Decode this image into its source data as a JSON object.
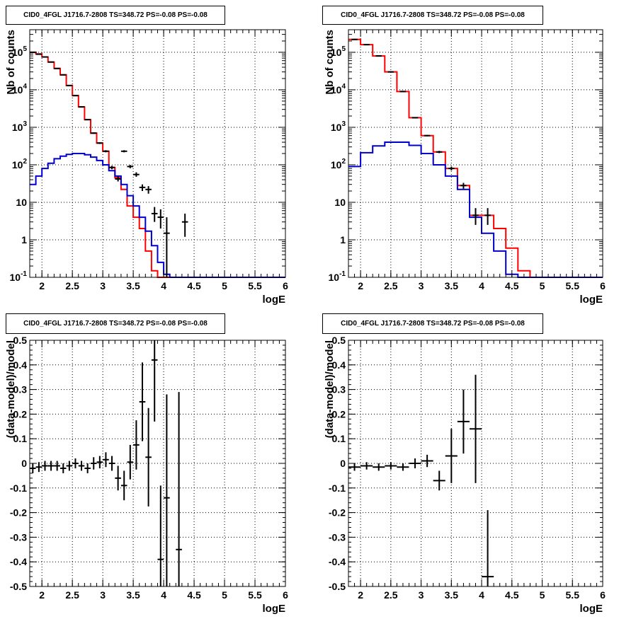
{
  "colors": {
    "data": "#000000",
    "model": "#ff0000",
    "background_model": "#0000cc",
    "grid": "#000000"
  },
  "chart_data": [
    {
      "type": "line",
      "title": "CID0_4FGL J1716.7-2808 TS=348.72 PS=-0.08 PS=-0.08",
      "xlabel": "logE",
      "ylabel": "Nb of counts",
      "xlim": [
        1.8,
        6.0
      ],
      "ylim": [
        0.1,
        400000
      ],
      "yscale": "log",
      "grid": true,
      "xticks": [
        "2",
        "2.5",
        "3",
        "3.5",
        "4",
        "4.5",
        "5",
        "5.5",
        "6"
      ],
      "yticks": [
        "10^-1",
        "1",
        "10",
        "10^2",
        "10^3",
        "10^4",
        "10^5"
      ],
      "bin_edges": [
        1.8,
        1.9,
        2.0,
        2.1,
        2.2,
        2.3,
        2.4,
        2.5,
        2.6,
        2.7,
        2.8,
        2.9,
        3.0,
        3.1,
        3.2,
        3.3,
        3.4,
        3.5,
        3.6,
        3.7,
        3.8,
        3.9,
        4.0,
        4.1,
        4.2,
        4.3,
        4.4,
        4.5,
        4.6,
        4.7,
        4.8,
        4.9,
        5.0,
        5.1,
        5.2,
        5.3,
        5.4,
        5.5,
        5.6,
        5.7,
        5.8,
        5.9,
        6.0
      ],
      "series": [
        {
          "role": "model",
          "values": [
            100000,
            90000,
            75000,
            55000,
            37000,
            25000,
            13000,
            7000,
            3500,
            1600,
            700,
            380,
            230,
            85,
            45,
            22,
            8,
            4,
            2,
            0.5,
            0.15,
            0.1,
            0.1,
            0.1,
            0.1,
            0.1,
            0.1,
            0.1,
            0.1,
            0.1,
            0.1,
            0.1,
            0.1,
            0.1,
            0.1,
            0.1,
            0.1,
            0.1,
            0.1,
            0.1,
            0.1,
            0.1
          ]
        },
        {
          "role": "background_model",
          "values": [
            30,
            50,
            80,
            110,
            145,
            170,
            190,
            200,
            200,
            185,
            160,
            130,
            100,
            70,
            50,
            30,
            15,
            8,
            4,
            1.7,
            0.7,
            0.25,
            0.12,
            0.1,
            0.1,
            0.1,
            0.1,
            0.1,
            0.1,
            0.1,
            0.1,
            0.1,
            0.1,
            0.1,
            0.1,
            0.1,
            0.1,
            0.1,
            0.1,
            0.1,
            0.1,
            0.1
          ]
        }
      ],
      "points": [
        {
          "x": 1.85,
          "y": 100000,
          "ylo": 99000,
          "yhi": 101000
        },
        {
          "x": 1.95,
          "y": 89000,
          "ylo": 88000,
          "yhi": 90000
        },
        {
          "x": 2.05,
          "y": 75000,
          "ylo": 74000,
          "yhi": 76000
        },
        {
          "x": 2.15,
          "y": 55000,
          "ylo": 54000,
          "yhi": 56000
        },
        {
          "x": 2.25,
          "y": 37000,
          "ylo": 36500,
          "yhi": 37500
        },
        {
          "x": 2.35,
          "y": 25000,
          "ylo": 24500,
          "yhi": 25500
        },
        {
          "x": 2.45,
          "y": 13000,
          "ylo": 12800,
          "yhi": 13200
        },
        {
          "x": 2.55,
          "y": 7000,
          "ylo": 6900,
          "yhi": 7100
        },
        {
          "x": 2.65,
          "y": 3500,
          "ylo": 3400,
          "yhi": 3600
        },
        {
          "x": 2.75,
          "y": 1600,
          "ylo": 1550,
          "yhi": 1650
        },
        {
          "x": 2.85,
          "y": 700,
          "ylo": 670,
          "yhi": 730
        },
        {
          "x": 2.95,
          "y": 380,
          "ylo": 360,
          "yhi": 400
        },
        {
          "x": 3.05,
          "y": 230,
          "ylo": 215,
          "yhi": 245
        },
        {
          "x": 3.15,
          "y": 85,
          "ylo": 76,
          "yhi": 94
        },
        {
          "x": 3.25,
          "y": 42,
          "ylo": 36,
          "yhi": 49
        },
        {
          "x": 3.35,
          "y": 230,
          "ylo": 215,
          "yhi": 245
        },
        {
          "x": 3.45,
          "y": 90,
          "ylo": 81,
          "yhi": 99
        },
        {
          "x": 3.55,
          "y": 55,
          "ylo": 48,
          "yhi": 63
        },
        {
          "x": 3.65,
          "y": 25,
          "ylo": 20,
          "yhi": 30
        },
        {
          "x": 3.75,
          "y": 22,
          "ylo": 17,
          "yhi": 27
        },
        {
          "x": 3.85,
          "y": 5,
          "ylo": 3,
          "yhi": 7.5
        },
        {
          "x": 3.95,
          "y": 4,
          "ylo": 2,
          "yhi": 6.5
        },
        {
          "x": 4.05,
          "y": 1.5,
          "ylo": 0.1,
          "yhi": 4
        },
        {
          "x": 4.35,
          "y": 3,
          "ylo": 1.2,
          "yhi": 5
        }
      ]
    },
    {
      "type": "line",
      "title": "CID0_4FGL J1716.7-2808 TS=348.72 PS=-0.08 PS=-0.08",
      "xlabel": "logE",
      "ylabel": "Nb of counts",
      "xlim": [
        1.8,
        6.0
      ],
      "ylim": [
        0.1,
        400000
      ],
      "yscale": "log",
      "grid": true,
      "xticks": [
        "2",
        "2.5",
        "3",
        "3.5",
        "4",
        "4.5",
        "5",
        "5.5",
        "6"
      ],
      "yticks": [
        "10^-1",
        "1",
        "10",
        "10^2",
        "10^3",
        "10^4",
        "10^5"
      ],
      "bin_edges": [
        1.8,
        2.0,
        2.2,
        2.4,
        2.6,
        2.8,
        3.0,
        3.2,
        3.4,
        3.6,
        3.8,
        4.0,
        4.2,
        4.4,
        4.6,
        4.8,
        5.0,
        5.2,
        5.4,
        5.6,
        5.8,
        6.0
      ],
      "series": [
        {
          "role": "model",
          "values": [
            220000,
            160000,
            80000,
            30000,
            9000,
            1800,
            600,
            220,
            80,
            28,
            4.5,
            4.5,
            2,
            0.6,
            0.15,
            0.1,
            0.1,
            0.1,
            0.1,
            0.1,
            0.1
          ]
        },
        {
          "role": "background_model",
          "values": [
            90,
            210,
            320,
            400,
            400,
            330,
            200,
            100,
            50,
            22,
            4,
            1.5,
            0.5,
            0.12,
            0.1,
            0.1,
            0.1,
            0.1,
            0.1,
            0.1,
            0.1
          ]
        }
      ],
      "points": [
        {
          "x": 1.9,
          "y": 220000,
          "ylo": 219000,
          "yhi": 221000
        },
        {
          "x": 2.1,
          "y": 160000,
          "ylo": 159000,
          "yhi": 161000
        },
        {
          "x": 2.3,
          "y": 80000,
          "ylo": 79500,
          "yhi": 80500
        },
        {
          "x": 2.5,
          "y": 30000,
          "ylo": 29700,
          "yhi": 30300
        },
        {
          "x": 2.7,
          "y": 9000,
          "ylo": 8850,
          "yhi": 9150
        },
        {
          "x": 2.9,
          "y": 1800,
          "ylo": 1750,
          "yhi": 1850
        },
        {
          "x": 3.1,
          "y": 600,
          "ylo": 575,
          "yhi": 625
        },
        {
          "x": 3.3,
          "y": 220,
          "ylo": 205,
          "yhi": 235
        },
        {
          "x": 3.5,
          "y": 80,
          "ylo": 71,
          "yhi": 89
        },
        {
          "x": 3.7,
          "y": 28,
          "ylo": 23,
          "yhi": 33
        },
        {
          "x": 3.9,
          "y": 4.5,
          "ylo": 2.5,
          "yhi": 7
        },
        {
          "x": 4.1,
          "y": 4.5,
          "ylo": 2.5,
          "yhi": 7
        }
      ]
    },
    {
      "type": "scatter",
      "title": "CID0_4FGL J1716.7-2808 TS=348.72 PS=-0.08 PS=-0.08",
      "xlabel": "logE",
      "ylabel": "(data-model)/model",
      "xlim": [
        1.8,
        6.0
      ],
      "ylim": [
        -0.5,
        0.5
      ],
      "grid": true,
      "xticks": [
        "2",
        "2.5",
        "3",
        "3.5",
        "4",
        "4.5",
        "5",
        "5.5",
        "6"
      ],
      "yticks": [
        "-0.5",
        "-0.4",
        "-0.3",
        "-0.2",
        "-0.1",
        "0",
        "0.1",
        "0.2",
        "0.3",
        "0.4",
        "0.5"
      ],
      "xerr": 0.05,
      "points": [
        {
          "x": 1.85,
          "y": -0.02,
          "err": 0.02
        },
        {
          "x": 1.95,
          "y": -0.015,
          "err": 0.02
        },
        {
          "x": 2.05,
          "y": -0.01,
          "err": 0.02
        },
        {
          "x": 2.15,
          "y": -0.01,
          "err": 0.02
        },
        {
          "x": 2.25,
          "y": -0.01,
          "err": 0.02
        },
        {
          "x": 2.35,
          "y": -0.02,
          "err": 0.02
        },
        {
          "x": 2.45,
          "y": -0.01,
          "err": 0.02
        },
        {
          "x": 2.55,
          "y": 0.0,
          "err": 0.02
        },
        {
          "x": 2.65,
          "y": -0.01,
          "err": 0.02
        },
        {
          "x": 2.75,
          "y": -0.02,
          "err": 0.02
        },
        {
          "x": 2.85,
          "y": 0.0,
          "err": 0.025
        },
        {
          "x": 2.95,
          "y": 0.005,
          "err": 0.025
        },
        {
          "x": 3.05,
          "y": 0.015,
          "err": 0.03
        },
        {
          "x": 3.15,
          "y": 0.0,
          "err": 0.03
        },
        {
          "x": 3.25,
          "y": -0.06,
          "err": 0.05
        },
        {
          "x": 3.35,
          "y": -0.09,
          "err": 0.06
        },
        {
          "x": 3.45,
          "y": 0.005,
          "err": 0.07
        },
        {
          "x": 3.55,
          "y": 0.075,
          "err": 0.1
        },
        {
          "x": 3.65,
          "y": 0.25,
          "err": 0.16
        },
        {
          "x": 3.75,
          "y": 0.025,
          "err": 0.2
        },
        {
          "x": 3.85,
          "y": 0.42,
          "err": 0.25
        },
        {
          "x": 3.95,
          "y": -0.39,
          "err": 0.3
        },
        {
          "x": 4.05,
          "y": -0.14,
          "err": 0.42
        },
        {
          "x": 4.25,
          "y": -0.35,
          "err": 0.64
        }
      ]
    },
    {
      "type": "scatter",
      "title": "CID0_4FGL J1716.7-2808 TS=348.72 PS=-0.08 PS=-0.08",
      "xlabel": "logE",
      "ylabel": "(data-model)/model",
      "xlim": [
        1.8,
        6.0
      ],
      "ylim": [
        -0.5,
        0.5
      ],
      "grid": true,
      "xticks": [
        "2",
        "2.5",
        "3",
        "3.5",
        "4",
        "4.5",
        "5",
        "5.5",
        "6"
      ],
      "yticks": [
        "-0.5",
        "-0.4",
        "-0.3",
        "-0.2",
        "-0.1",
        "0",
        "0.1",
        "0.2",
        "0.3",
        "0.4",
        "0.5"
      ],
      "xerr": 0.1,
      "points": [
        {
          "x": 1.9,
          "y": -0.015,
          "err": 0.015
        },
        {
          "x": 2.1,
          "y": -0.01,
          "err": 0.015
        },
        {
          "x": 2.3,
          "y": -0.015,
          "err": 0.015
        },
        {
          "x": 2.5,
          "y": -0.01,
          "err": 0.015
        },
        {
          "x": 2.7,
          "y": -0.015,
          "err": 0.015
        },
        {
          "x": 2.9,
          "y": 0.0,
          "err": 0.02
        },
        {
          "x": 3.1,
          "y": 0.01,
          "err": 0.025
        },
        {
          "x": 3.3,
          "y": -0.07,
          "err": 0.04
        },
        {
          "x": 3.5,
          "y": 0.03,
          "err": 0.11
        },
        {
          "x": 3.7,
          "y": 0.17,
          "err": 0.13
        },
        {
          "x": 3.9,
          "y": 0.14,
          "err": 0.22
        },
        {
          "x": 4.1,
          "y": -0.46,
          "err": 0.27
        }
      ]
    }
  ]
}
